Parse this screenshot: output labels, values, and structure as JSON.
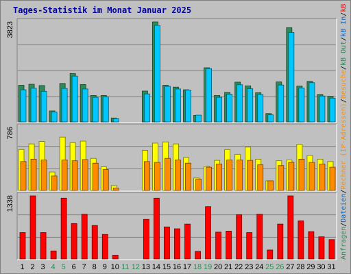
{
  "chart_data": {
    "type": "bar",
    "title": "Tages-Statistik im Monat Januar 2025",
    "categories": [
      "1",
      "2",
      "3",
      "4",
      "5",
      "6",
      "7",
      "8",
      "9",
      "10",
      "11",
      "12",
      "13",
      "14",
      "15",
      "16",
      "17",
      "18",
      "19",
      "20",
      "21",
      "22",
      "23",
      "24",
      "25",
      "26",
      "27",
      "28",
      "29",
      "30",
      "31"
    ],
    "weekend_categories": [
      "4",
      "5",
      "11",
      "12",
      "18",
      "19",
      "25",
      "26"
    ],
    "grid": true,
    "panels": [
      {
        "ymax_label": "3823",
        "ylim": [
          0,
          3823
        ],
        "series": [
          {
            "name": "Anfragen",
            "color": "#2e8b57",
            "values": [
              1400,
              1440,
              1390,
              420,
              1470,
              1850,
              1430,
              1010,
              1010,
              150,
              0,
              0,
              1180,
              3823,
              1400,
              1330,
              1230,
              250,
              2070,
              1010,
              1130,
              1520,
              1380,
              1120,
              320,
              1530,
              3600,
              1370,
              1550,
              1050,
              980
            ]
          },
          {
            "name": "Dateien",
            "color": "#00c8ff",
            "values": [
              1230,
              1290,
              1170,
              380,
              1280,
              1750,
              1260,
              940,
              960,
              130,
              0,
              0,
              1070,
              3690,
              1360,
              1260,
              1220,
              260,
              2040,
              940,
              1060,
              1420,
              1270,
              1050,
              270,
              1410,
              3420,
              1300,
              1500,
              990,
              910
            ]
          }
        ]
      },
      {
        "ymax_label": "786",
        "ylim": [
          0,
          786
        ],
        "series": [
          {
            "name": "Rechner (IP-Adressen)",
            "color": "#ffff00",
            "values": [
              510,
              580,
              610,
              230,
              665,
              595,
              615,
              400,
              295,
              60,
              0,
              0,
              500,
              590,
              605,
              580,
              410,
              155,
              300,
              375,
              510,
              450,
              540,
              390,
              120,
              370,
              380,
              575,
              435,
              390,
              360
            ]
          },
          {
            "name": "Besuche",
            "color": "#ff8c00",
            "values": [
              360,
              390,
              380,
              180,
              380,
              370,
              385,
              340,
              260,
              30,
              0,
              0,
              360,
              350,
              400,
              380,
              340,
              140,
              290,
              330,
              380,
              380,
              375,
              320,
              120,
              310,
              350,
              390,
              350,
              330,
              290
            ]
          }
        ]
      },
      {
        "ymax_label": "1338",
        "ylim": [
          0,
          1338
        ],
        "series": [
          {
            "name": "kB F",
            "color": "#ff0000",
            "values": [
              560,
              1338,
              560,
              170,
              1290,
              750,
              950,
              710,
              520,
              80,
              0,
              0,
              840,
              1290,
              680,
              640,
              740,
              160,
              1110,
              570,
              590,
              940,
              560,
              950,
              190,
              740,
              1338,
              810,
              580,
              470,
              410
            ]
          }
        ]
      }
    ],
    "legend_right": [
      {
        "text": "Anfragen",
        "color": "#2e8b57"
      },
      {
        "text": "/",
        "color": "#000000"
      },
      {
        "text": "Dateien",
        "color": "#0066cc"
      },
      {
        "text": "/",
        "color": "#000000"
      },
      {
        "text": "Rechner (IP-Adressen)",
        "color": "#ff8c00"
      },
      {
        "text": "/",
        "color": "#000000"
      },
      {
        "text": "Besuche",
        "color": "#ff8c00"
      },
      {
        "text": "/",
        "color": "#000000"
      },
      {
        "text": "kB Out",
        "color": "#2e8b57"
      },
      {
        "text": "/",
        "color": "#000000"
      },
      {
        "text": "kB In",
        "color": "#0066cc"
      },
      {
        "text": "/",
        "color": "#000000"
      },
      {
        "text": "kB F",
        "color": "#ff0000"
      }
    ]
  }
}
